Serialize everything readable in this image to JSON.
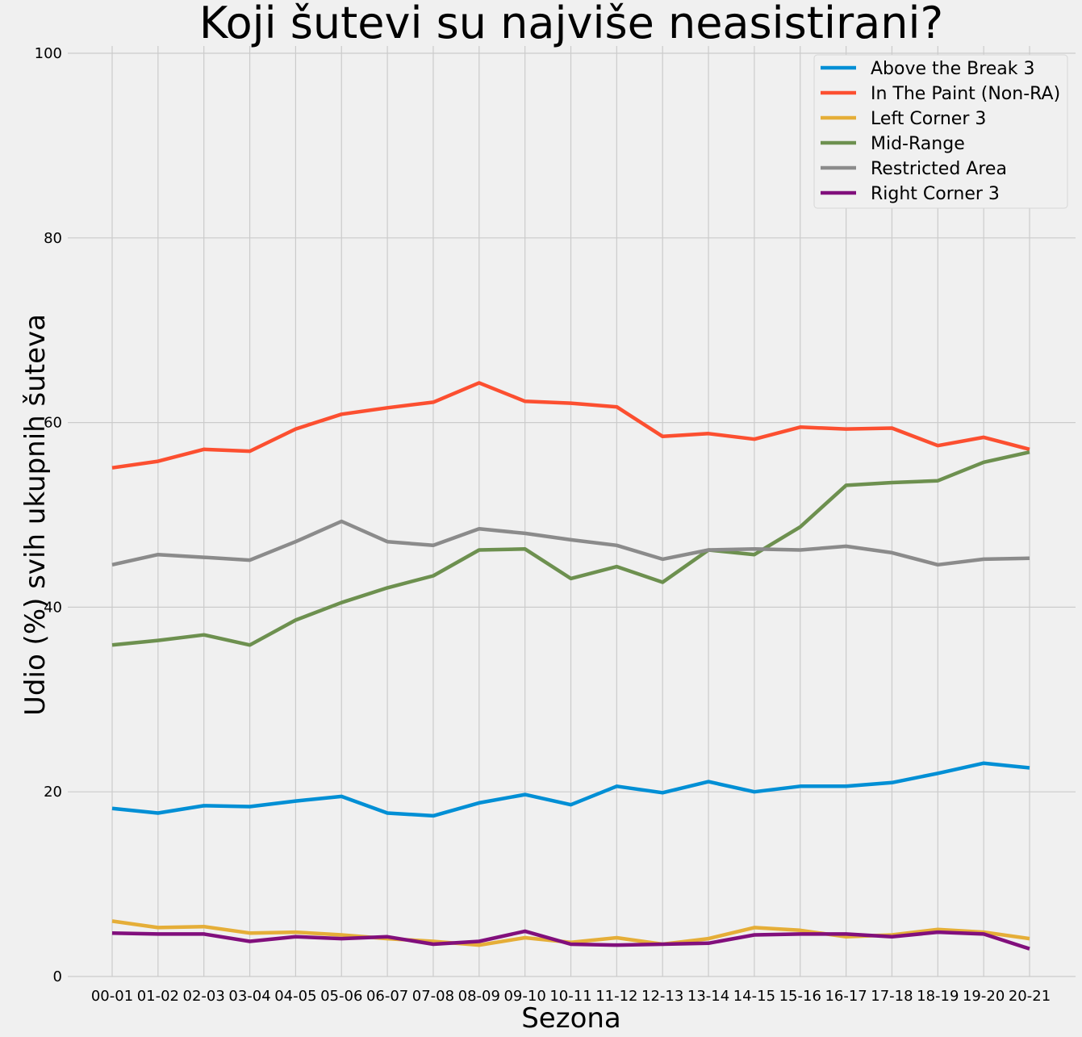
{
  "chart_data": {
    "type": "line",
    "title": "Koji šutevi su najviše neasistirani?",
    "xlabel": "Sezona",
    "ylabel": "Udio (%) svih ukupnih šuteva",
    "ylim": [
      0,
      100
    ],
    "yticks": [
      0,
      20,
      40,
      60,
      80,
      100
    ],
    "grid": true,
    "legend_position": "top-right",
    "categories": [
      "00-01",
      "01-02",
      "02-03",
      "03-04",
      "04-05",
      "05-06",
      "06-07",
      "07-08",
      "08-09",
      "09-10",
      "10-11",
      "11-12",
      "12-13",
      "13-14",
      "14-15",
      "15-16",
      "16-17",
      "17-18",
      "18-19",
      "19-20",
      "20-21"
    ],
    "series": [
      {
        "name": "Above the Break 3",
        "color": "#008fd5",
        "values": [
          18.2,
          17.7,
          18.5,
          18.4,
          19.0,
          19.5,
          17.7,
          17.4,
          18.8,
          19.7,
          18.6,
          20.6,
          19.9,
          21.1,
          20.0,
          20.6,
          20.6,
          21.0,
          22.0,
          23.1,
          22.6
        ]
      },
      {
        "name": "In The Paint (Non-RA)",
        "color": "#fc4f30",
        "values": [
          55.1,
          55.8,
          57.1,
          56.9,
          59.3,
          60.9,
          61.6,
          62.2,
          64.3,
          62.3,
          62.1,
          61.7,
          58.5,
          58.8,
          58.2,
          59.5,
          59.3,
          59.4,
          57.5,
          58.4,
          57.1
        ]
      },
      {
        "name": "Left Corner 3",
        "color": "#e5ae38",
        "values": [
          6.0,
          5.3,
          5.4,
          4.7,
          4.8,
          4.5,
          4.1,
          3.8,
          3.4,
          4.2,
          3.7,
          4.2,
          3.5,
          4.1,
          5.3,
          5.0,
          4.3,
          4.5,
          5.1,
          4.8,
          4.1
        ]
      },
      {
        "name": "Mid-Range",
        "color": "#6d904f",
        "values": [
          35.9,
          36.4,
          37.0,
          35.9,
          38.6,
          40.5,
          42.1,
          43.4,
          46.2,
          46.3,
          43.1,
          44.4,
          42.7,
          46.2,
          45.7,
          48.7,
          53.2,
          53.5,
          53.7,
          55.7,
          56.8
        ]
      },
      {
        "name": "Restricted Area",
        "color": "#8b8b8b",
        "values": [
          44.6,
          45.7,
          45.4,
          45.1,
          47.1,
          49.3,
          47.1,
          46.7,
          48.5,
          48.0,
          47.3,
          46.7,
          45.2,
          46.2,
          46.3,
          46.2,
          46.6,
          45.9,
          44.6,
          45.2,
          45.3
        ]
      },
      {
        "name": "Right Corner 3",
        "color": "#810f7c",
        "values": [
          4.7,
          4.6,
          4.6,
          3.8,
          4.3,
          4.1,
          4.3,
          3.5,
          3.8,
          4.9,
          3.5,
          3.4,
          3.5,
          3.6,
          4.5,
          4.6,
          4.6,
          4.3,
          4.8,
          4.6,
          3.0
        ]
      }
    ]
  }
}
